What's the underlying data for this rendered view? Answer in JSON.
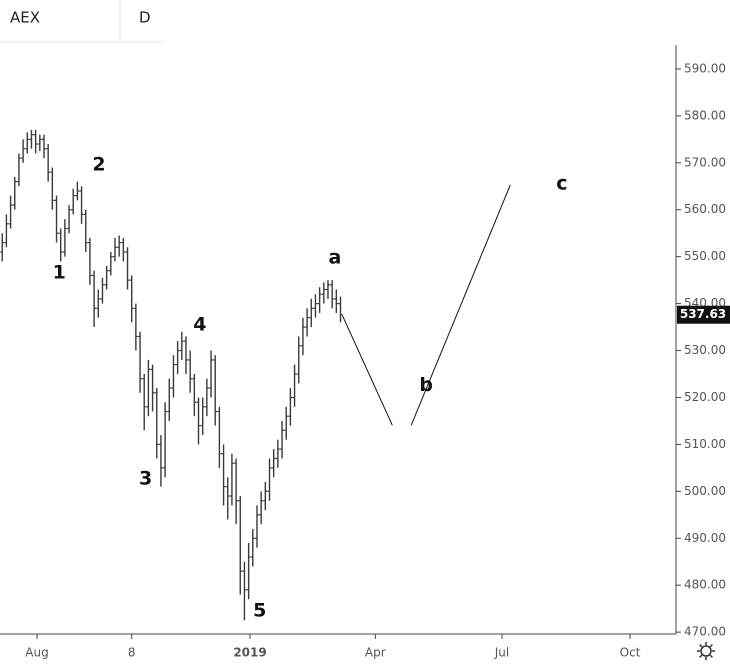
{
  "chart_data": {
    "type": "ohlc",
    "title": "AEX",
    "interval": "D",
    "color": "#3a3a3a",
    "grid": false,
    "xlim": [
      185.4,
      671
    ],
    "ylim": [
      469.6,
      595.1
    ],
    "xticks": [
      {
        "value": 212,
        "label": "Aug"
      },
      {
        "value": 280,
        "label": "8"
      },
      {
        "value": 365,
        "label": "2019"
      },
      {
        "value": 455,
        "label": "Apr"
      },
      {
        "value": 546,
        "label": "Jul"
      },
      {
        "value": 638,
        "label": "Oct"
      }
    ],
    "yticks": [
      {
        "value": 470,
        "label": "470.00"
      },
      {
        "value": 480,
        "label": "480.00"
      },
      {
        "value": 490,
        "label": "490.00"
      },
      {
        "value": 500,
        "label": "500.00"
      },
      {
        "value": 510,
        "label": "510.00"
      },
      {
        "value": 520,
        "label": "520.00"
      },
      {
        "value": 530,
        "label": "530.00"
      },
      {
        "value": 540,
        "label": "540.00"
      },
      {
        "value": 550,
        "label": "550.00"
      },
      {
        "value": 560,
        "label": "560.00"
      },
      {
        "value": 570,
        "label": "570.00"
      },
      {
        "value": 580,
        "label": "580.00"
      },
      {
        "value": 590,
        "label": "590.00"
      }
    ],
    "series": [
      {
        "name": "AEX",
        "x": [
          187,
          190,
          193,
          196,
          199,
          202,
          205,
          208,
          211,
          214,
          217,
          220,
          223,
          226,
          229,
          232,
          235,
          238,
          241,
          244,
          247,
          250,
          253,
          256,
          259,
          262,
          265,
          268,
          271,
          274,
          277,
          280,
          283,
          286,
          289,
          292,
          295,
          298,
          301,
          304,
          307,
          310,
          313,
          316,
          319,
          322,
          325,
          328,
          331,
          334,
          337,
          340,
          343,
          346,
          349,
          352,
          355,
          358,
          361,
          364,
          367,
          370,
          373,
          376,
          379,
          382,
          385,
          388,
          391,
          394,
          397,
          400,
          403,
          406,
          409,
          412,
          415,
          418,
          421,
          424,
          427,
          430
        ],
        "open": [
          551,
          553,
          557,
          561,
          566,
          571,
          573,
          575,
          576,
          574,
          575,
          573,
          568,
          562,
          555,
          551,
          556,
          560,
          563,
          564,
          559,
          553,
          546,
          539,
          541,
          544,
          547,
          550,
          552,
          553,
          551,
          545,
          539,
          533,
          524,
          518,
          526,
          521,
          510,
          505,
          517,
          522,
          527,
          530,
          532,
          528,
          524,
          519,
          514,
          518,
          522,
          528,
          517,
          508,
          501,
          499,
          506,
          498,
          483,
          479,
          486,
          490,
          495,
          498,
          500,
          505,
          507,
          509,
          513,
          516,
          520,
          525,
          531,
          535,
          537,
          539,
          540,
          542,
          543,
          544,
          541,
          540
        ],
        "high": [
          555,
          559,
          563,
          567,
          572,
          575,
          576.5,
          577,
          577,
          576,
          576,
          574,
          569,
          563,
          556,
          558,
          561,
          564.5,
          566,
          565,
          560,
          554,
          547,
          543,
          545.5,
          548,
          551,
          554,
          554.5,
          554,
          552,
          546,
          540,
          534,
          525,
          528,
          527,
          522,
          512,
          519,
          524,
          529,
          532,
          534,
          533,
          530,
          525,
          520,
          520,
          524,
          530,
          529,
          518,
          510,
          503,
          508,
          507,
          499,
          485,
          489,
          492,
          497,
          500,
          502,
          507,
          509,
          511,
          515,
          518,
          522,
          527,
          533,
          537,
          539,
          541,
          542,
          543.5,
          544.5,
          545,
          545,
          543,
          541.5
        ],
        "low": [
          549,
          552,
          556,
          560,
          565,
          570,
          572,
          573,
          572,
          572.5,
          571,
          566,
          560,
          553,
          549,
          550,
          555,
          559,
          562,
          557,
          551,
          544,
          535,
          537,
          540,
          543,
          546,
          549,
          550,
          549,
          543,
          536,
          530,
          521,
          513,
          516,
          517,
          507,
          501,
          503,
          515,
          520,
          525,
          528,
          525,
          521,
          516,
          510,
          512,
          516,
          520,
          514,
          505,
          497,
          494,
          497,
          493,
          478,
          472.5,
          477,
          484,
          488,
          493,
          496,
          498,
          503,
          505,
          507,
          511,
          514,
          518,
          523,
          529,
          533,
          535,
          537,
          538,
          540,
          541,
          539,
          538,
          536
        ],
        "close": [
          553,
          557,
          561,
          566,
          571,
          573,
          575,
          576,
          574,
          575,
          573,
          568,
          562,
          555,
          551,
          556,
          560,
          563,
          564,
          559,
          553,
          546,
          539,
          541,
          544,
          547,
          550,
          552,
          553,
          551,
          545,
          539,
          533,
          524,
          518,
          526,
          521,
          510,
          505,
          517,
          522,
          527,
          530,
          532,
          528,
          524,
          519,
          514,
          518,
          522,
          528,
          517,
          508,
          501,
          499,
          506,
          498,
          483,
          479,
          486,
          490,
          495,
          498,
          500,
          505,
          507,
          509,
          513,
          516,
          520,
          525,
          531,
          535,
          537,
          539,
          540,
          542,
          543,
          544,
          541,
          540,
          537.63
        ]
      }
    ],
    "drawings": [
      {
        "x": [
          431.3,
          467.2
        ],
        "y": [
          537.5,
          514.1
        ]
      },
      {
        "x": [
          480.8,
          552
        ],
        "y": [
          514.1,
          565.3
        ]
      }
    ],
    "annotations": [
      {
        "text": "1",
        "x": 228,
        "y": 546.5
      },
      {
        "text": "2",
        "x": 256.5,
        "y": 569.5
      },
      {
        "text": "3",
        "x": 290,
        "y": 502.6
      },
      {
        "text": "4",
        "x": 329,
        "y": 535.4
      },
      {
        "text": "5",
        "x": 372,
        "y": 474.5
      },
      {
        "text": "a",
        "x": 426,
        "y": 549.7
      },
      {
        "text": "b",
        "x": 491.5,
        "y": 522.6
      },
      {
        "text": "c",
        "x": 589,
        "y": 565.5
      }
    ]
  }
}
